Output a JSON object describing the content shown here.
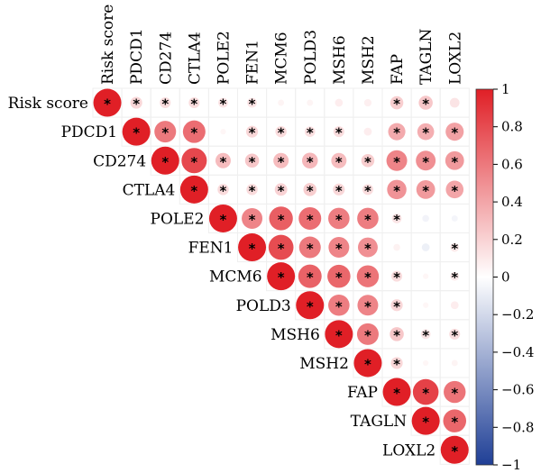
{
  "chart_data": {
    "type": "heatmap",
    "subtype": "correlation-matrix-upper",
    "variables": [
      "Risk score",
      "PDCD1",
      "CD274",
      "CTLA4",
      "POLE2",
      "FEN1",
      "MCM6",
      "POLD3",
      "MSH6",
      "MSH2",
      "FAP",
      "TAGLN",
      "LOXL2"
    ],
    "matrix": [
      [
        1.0,
        0.18,
        0.15,
        0.15,
        0.12,
        0.12,
        0.05,
        0.05,
        0.08,
        0.07,
        0.22,
        0.25,
        0.12
      ],
      [
        null,
        1.0,
        0.6,
        0.65,
        0.04,
        0.18,
        0.16,
        0.14,
        0.15,
        0.08,
        0.38,
        0.36,
        0.42
      ],
      [
        null,
        null,
        1.0,
        0.82,
        0.3,
        0.25,
        0.3,
        0.32,
        0.3,
        0.22,
        0.55,
        0.5,
        0.45
      ],
      [
        null,
        null,
        null,
        1.0,
        0.16,
        0.16,
        0.2,
        0.22,
        0.18,
        0.15,
        0.48,
        0.45,
        0.4
      ],
      [
        null,
        null,
        null,
        null,
        1.0,
        0.55,
        0.72,
        0.65,
        0.58,
        0.58,
        0.12,
        -0.06,
        -0.05
      ],
      [
        null,
        null,
        null,
        null,
        null,
        1.0,
        0.8,
        0.6,
        0.55,
        0.5,
        0.06,
        -0.08,
        0.1
      ],
      [
        null,
        null,
        null,
        null,
        null,
        null,
        1.0,
        0.7,
        0.68,
        0.62,
        0.15,
        0.04,
        0.1
      ],
      [
        null,
        null,
        null,
        null,
        null,
        null,
        null,
        1.0,
        0.58,
        0.55,
        0.18,
        0.04,
        0.08
      ],
      [
        null,
        null,
        null,
        null,
        null,
        null,
        null,
        null,
        1.0,
        0.6,
        0.25,
        0.12,
        0.15
      ],
      [
        null,
        null,
        null,
        null,
        null,
        null,
        null,
        null,
        null,
        1.0,
        0.18,
        0.04,
        0.05
      ],
      [
        null,
        null,
        null,
        null,
        null,
        null,
        null,
        null,
        null,
        null,
        1.0,
        0.85,
        0.62
      ],
      [
        null,
        null,
        null,
        null,
        null,
        null,
        null,
        null,
        null,
        null,
        null,
        1.0,
        0.68
      ],
      [
        null,
        null,
        null,
        null,
        null,
        null,
        null,
        null,
        null,
        null,
        null,
        null,
        1.0
      ]
    ],
    "significant": [
      [
        1,
        1,
        1,
        1,
        1,
        1,
        0,
        0,
        0,
        0,
        1,
        1,
        0
      ],
      [
        0,
        1,
        1,
        1,
        0,
        1,
        1,
        1,
        1,
        0,
        1,
        1,
        1
      ],
      [
        0,
        0,
        1,
        1,
        1,
        1,
        1,
        1,
        1,
        1,
        1,
        1,
        1
      ],
      [
        0,
        0,
        0,
        1,
        1,
        1,
        1,
        1,
        1,
        1,
        1,
        1,
        1
      ],
      [
        0,
        0,
        0,
        0,
        1,
        1,
        1,
        1,
        1,
        1,
        1,
        0,
        0
      ],
      [
        0,
        0,
        0,
        0,
        0,
        1,
        1,
        1,
        1,
        1,
        0,
        0,
        1
      ],
      [
        0,
        0,
        0,
        0,
        0,
        0,
        1,
        1,
        1,
        1,
        1,
        0,
        1
      ],
      [
        0,
        0,
        0,
        0,
        0,
        0,
        0,
        1,
        1,
        1,
        1,
        0,
        0
      ],
      [
        0,
        0,
        0,
        0,
        0,
        0,
        0,
        0,
        1,
        1,
        1,
        1,
        1
      ],
      [
        0,
        0,
        0,
        0,
        0,
        0,
        0,
        0,
        0,
        1,
        1,
        0,
        0
      ],
      [
        0,
        0,
        0,
        0,
        0,
        0,
        0,
        0,
        0,
        0,
        1,
        1,
        1
      ],
      [
        0,
        0,
        0,
        0,
        0,
        0,
        0,
        0,
        0,
        0,
        0,
        1,
        1
      ],
      [
        0,
        0,
        0,
        0,
        0,
        0,
        0,
        0,
        0,
        0,
        0,
        0,
        1
      ]
    ],
    "significance_marker": "*",
    "colorbar": {
      "range": [
        -1,
        1
      ],
      "ticks": [
        "1",
        "0.8",
        "0.6",
        "0.4",
        "0.2",
        "0",
        "−0.2",
        "−0.4",
        "−0.6",
        "−0.8",
        "−1"
      ],
      "colors": {
        "negative": "#1f3f96",
        "zero": "#ffffff",
        "positive": "#e01f26"
      }
    }
  }
}
